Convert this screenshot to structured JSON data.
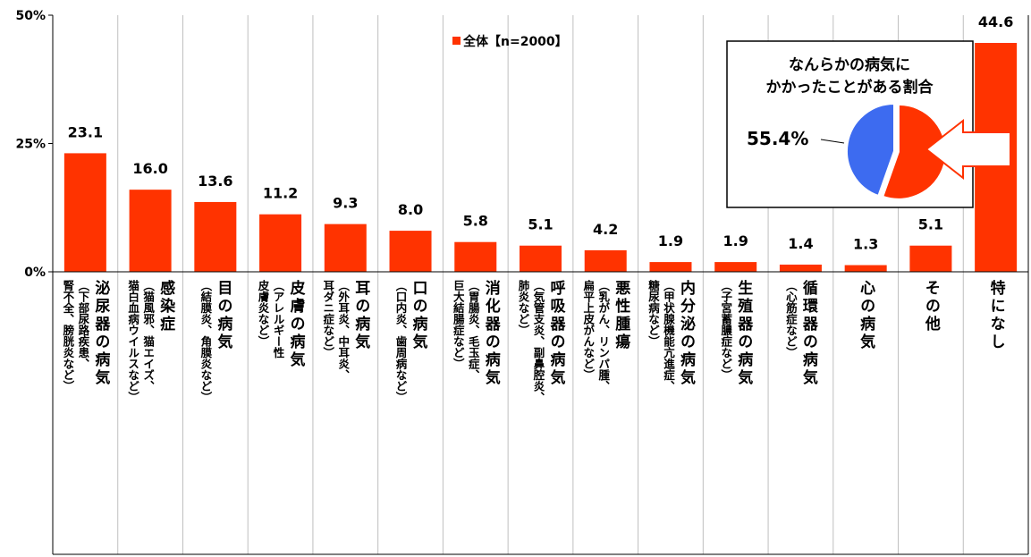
{
  "legend": "全体【n=2000】",
  "colors": {
    "bar": "#FF3300",
    "pie_main": "#FF3300",
    "pie_other": "#3D6BF0",
    "axis": "#000000",
    "grid": "#BFBFBF"
  },
  "categories": [
    {
      "main": "泌尿器の病気",
      "sub": [
        "（下部尿路疾患、",
        "腎不全、膀胱炎など）"
      ]
    },
    {
      "main": "感染症",
      "sub": [
        "（猫風邪、猫エイズ、",
        "猫白血病ウイルスなど）"
      ]
    },
    {
      "main": "目の病気",
      "sub": [
        "（結膜炎、角膜炎など）"
      ]
    },
    {
      "main": "皮膚の病気",
      "sub": [
        "（アレルギー性",
        "皮膚炎など）"
      ]
    },
    {
      "main": "耳の病気",
      "sub": [
        "（外耳炎、中耳炎、",
        "耳ダニ症など）"
      ]
    },
    {
      "main": "口の病気",
      "sub": [
        "（口内炎、歯周病など）"
      ]
    },
    {
      "main": "消化器の病気",
      "sub": [
        "（胃腸炎、毛玉症、",
        "巨大結腸症など）"
      ]
    },
    {
      "main": "呼吸器の病気",
      "sub": [
        "（気管支炎、副鼻腔炎、",
        "肺炎など）"
      ]
    },
    {
      "main": "悪性腫瘍",
      "sub": [
        "（乳がん、リンパ腫、",
        "扁平上皮がんなど）"
      ]
    },
    {
      "main": "内分泌の病気",
      "sub": [
        "（甲状腺機能亢進症、",
        "糖尿病など）"
      ]
    },
    {
      "main": "生殖器の病気",
      "sub": [
        "（子宮蓄膿症など）"
      ]
    },
    {
      "main": "循環器の病気",
      "sub": [
        "（心筋症など）"
      ]
    },
    {
      "main": "心の病気",
      "sub": []
    },
    {
      "main": "その他",
      "sub": []
    },
    {
      "main": "特になし",
      "sub": []
    }
  ],
  "chart_data": {
    "type": "bar",
    "values": [
      23.1,
      16.0,
      13.6,
      11.2,
      9.3,
      8.0,
      5.8,
      5.1,
      4.2,
      1.9,
      1.9,
      1.4,
      1.3,
      5.1,
      44.6
    ],
    "value_labels": [
      "23.1",
      "16.0",
      "13.6",
      "11.2",
      "9.3",
      "8.0",
      "5.8",
      "5.1",
      "4.2",
      "1.9",
      "1.9",
      "1.4",
      "1.3",
      "5.1",
      "44.6"
    ],
    "ylim": [
      0,
      50
    ],
    "y_ticks": [
      "0%",
      "25%",
      "50%"
    ],
    "y_tick_values": [
      0,
      25,
      50
    ],
    "grid": "vertical separators between categories",
    "legend_position": "top-center",
    "inset": {
      "type": "pie",
      "title_lines": [
        "なんらかの病気に",
        "かかったことがある割合"
      ],
      "value": 55.4,
      "value_label": "55.4%"
    }
  }
}
